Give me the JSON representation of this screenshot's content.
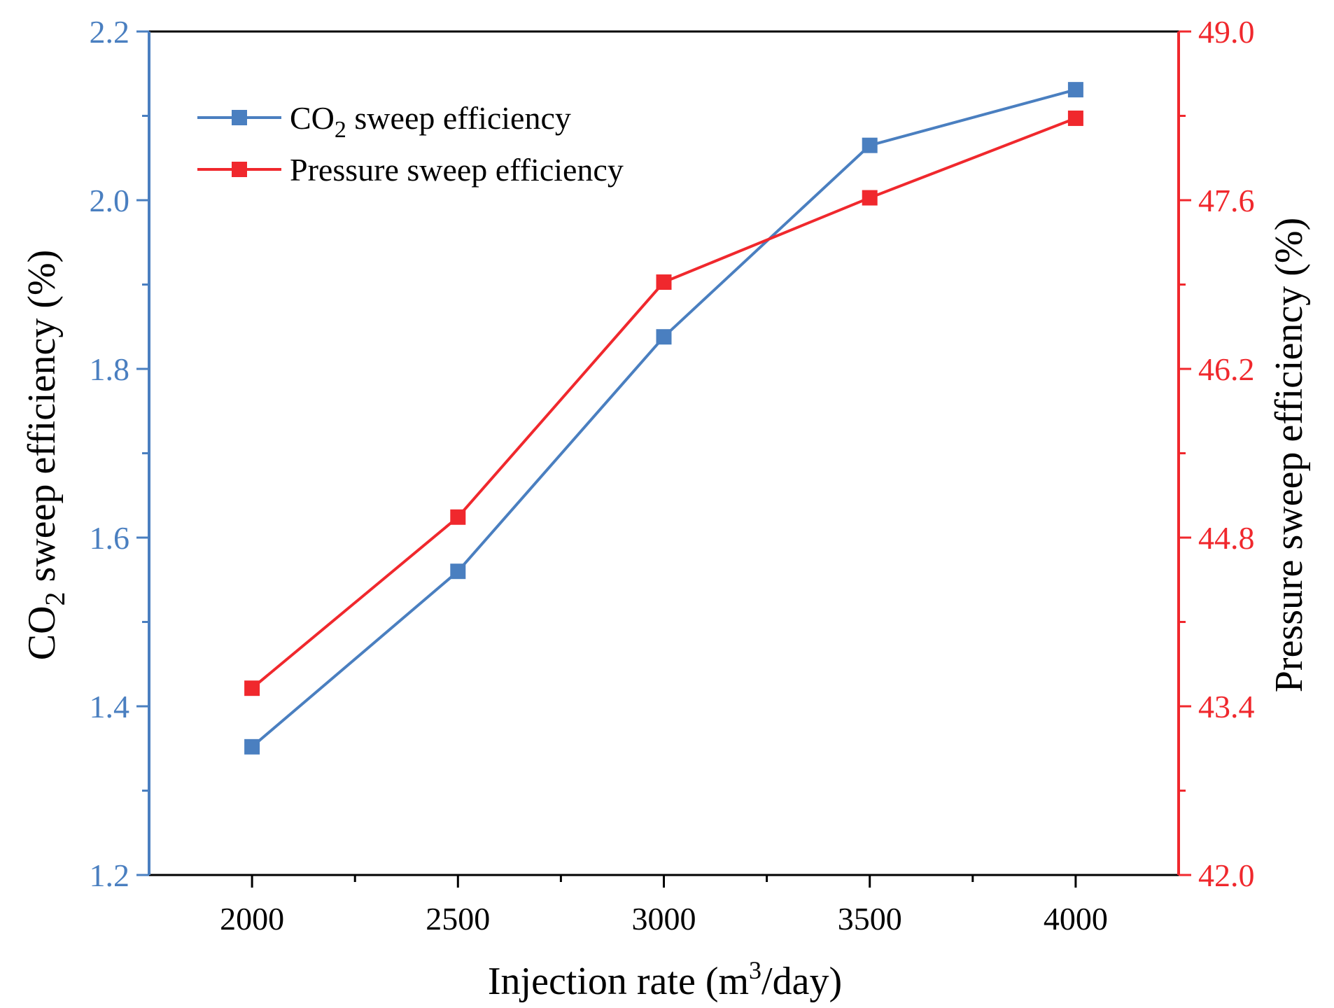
{
  "chart_data": {
    "type": "line",
    "title": "",
    "x": [
      2000,
      2500,
      3000,
      3500,
      4000
    ],
    "xlim": [
      1750,
      4250
    ],
    "xticks": [
      "2000",
      "2500",
      "3000",
      "3500",
      "4000"
    ],
    "xlabel": {
      "pre": "Injection rate (m",
      "sup": "3",
      "post": "/day)"
    },
    "ylabel_left": {
      "pre": "CO",
      "sub": "2",
      "post": " sweep efficiency (%)"
    },
    "ylabel_right": "Pressure sweep efficiency (%)",
    "ylim_left": [
      1.2,
      2.2
    ],
    "ylim_right": [
      42.0,
      49.0
    ],
    "yticks_left": [
      "1.2",
      "1.4",
      "1.6",
      "1.8",
      "2.0",
      "2.2"
    ],
    "yticks_right": [
      "42.0",
      "43.4",
      "44.8",
      "46.2",
      "47.6",
      "49.0"
    ],
    "series": [
      {
        "name": "CO2 sweep efficiency",
        "legend": {
          "pre": "CO",
          "sub": "2",
          "post": " sweep efficiency"
        },
        "axis": "left",
        "color": "#4a7fc0",
        "values": [
          1.352,
          1.56,
          1.838,
          2.065,
          2.131
        ]
      },
      {
        "name": "Pressure sweep efficiency",
        "legend": {
          "pre": "Pressure sweep efficiency",
          "sub": "",
          "post": ""
        },
        "axis": "right",
        "color": "#f0282d",
        "values": [
          43.55,
          44.97,
          46.92,
          47.62,
          48.28
        ]
      }
    ],
    "left_axis_color": "#4a7fc0",
    "right_axis_color": "#f0282d",
    "grid": false,
    "legend_position": "top-left"
  }
}
